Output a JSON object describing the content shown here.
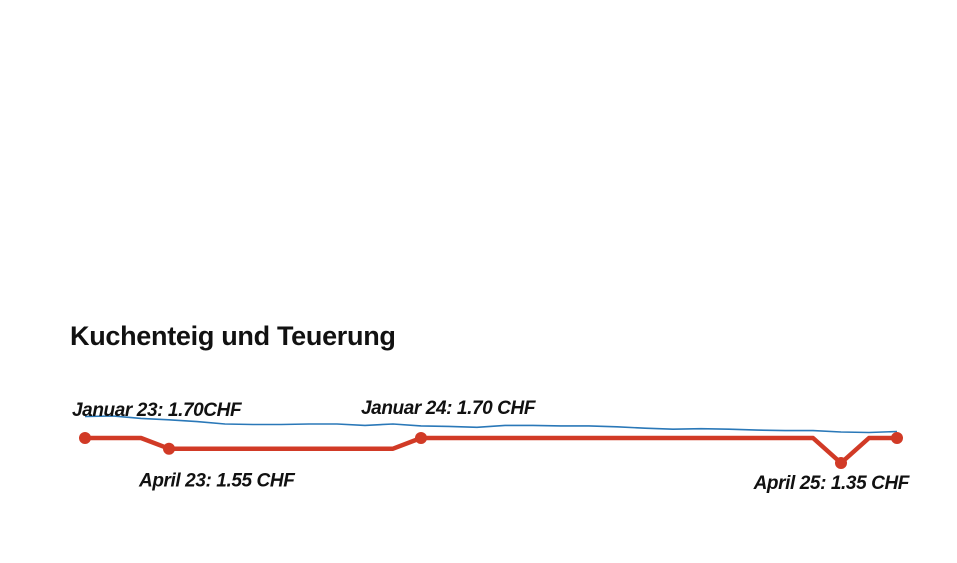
{
  "title": "Kuchenteig und Teuerung",
  "chart_data": {
    "type": "line",
    "title": "Kuchenteig und Teuerung",
    "xlabel": "",
    "ylabel": "",
    "x_range": [
      "2023-01",
      "2025-06"
    ],
    "series": [
      {
        "role": "price",
        "color": "#d13a26",
        "points": [
          {
            "x": "2023-01",
            "y": 1.7
          },
          {
            "x": "2023-03",
            "y": 1.7
          },
          {
            "x": "2023-04",
            "y": 1.55
          },
          {
            "x": "2023-12",
            "y": 1.55
          },
          {
            "x": "2024-01",
            "y": 1.7
          },
          {
            "x": "2025-03",
            "y": 1.7
          },
          {
            "x": "2025-04",
            "y": 1.35
          },
          {
            "x": "2025-05",
            "y": 1.7
          },
          {
            "x": "2025-06",
            "y": 1.7
          }
        ],
        "markers": [
          "2023-01",
          "2023-04",
          "2024-01",
          "2025-04",
          "2025-06"
        ]
      },
      {
        "role": "inflation",
        "color": "#2a78b8",
        "points": [
          {
            "x": "2023-01",
            "y": 3.3
          },
          {
            "x": "2023-02",
            "y": 3.4
          },
          {
            "x": "2023-03",
            "y": 2.9
          },
          {
            "x": "2023-04",
            "y": 2.6
          },
          {
            "x": "2023-05",
            "y": 2.2
          },
          {
            "x": "2023-06",
            "y": 1.7
          },
          {
            "x": "2023-07",
            "y": 1.6
          },
          {
            "x": "2023-08",
            "y": 1.6
          },
          {
            "x": "2023-09",
            "y": 1.7
          },
          {
            "x": "2023-10",
            "y": 1.7
          },
          {
            "x": "2023-11",
            "y": 1.4
          },
          {
            "x": "2023-12",
            "y": 1.7
          },
          {
            "x": "2024-01",
            "y": 1.3
          },
          {
            "x": "2024-02",
            "y": 1.2
          },
          {
            "x": "2024-03",
            "y": 1.0
          },
          {
            "x": "2024-04",
            "y": 1.4
          },
          {
            "x": "2024-05",
            "y": 1.4
          },
          {
            "x": "2024-06",
            "y": 1.3
          },
          {
            "x": "2024-07",
            "y": 1.3
          },
          {
            "x": "2024-08",
            "y": 1.1
          },
          {
            "x": "2024-09",
            "y": 0.8
          },
          {
            "x": "2024-10",
            "y": 0.6
          },
          {
            "x": "2024-11",
            "y": 0.7
          },
          {
            "x": "2024-12",
            "y": 0.6
          },
          {
            "x": "2025-01",
            "y": 0.4
          },
          {
            "x": "2025-02",
            "y": 0.3
          },
          {
            "x": "2025-03",
            "y": 0.3
          },
          {
            "x": "2025-04",
            "y": 0.0
          },
          {
            "x": "2025-05",
            "y": -0.1
          },
          {
            "x": "2025-06",
            "y": 0.1
          }
        ]
      }
    ],
    "annotations": [
      {
        "text": "Januar 23: 1.70CHF",
        "x": "2023-01",
        "y": 1.7,
        "position": "above"
      },
      {
        "text": "April 23: 1.55 CHF",
        "x": "2023-04",
        "y": 1.55,
        "position": "below"
      },
      {
        "text": "Januar 24: 1.70 CHF",
        "x": "2024-01",
        "y": 1.7,
        "position": "above"
      },
      {
        "text": "April 25: 1.35 CHF",
        "x": "2025-04",
        "y": 1.35,
        "position": "below"
      }
    ]
  }
}
